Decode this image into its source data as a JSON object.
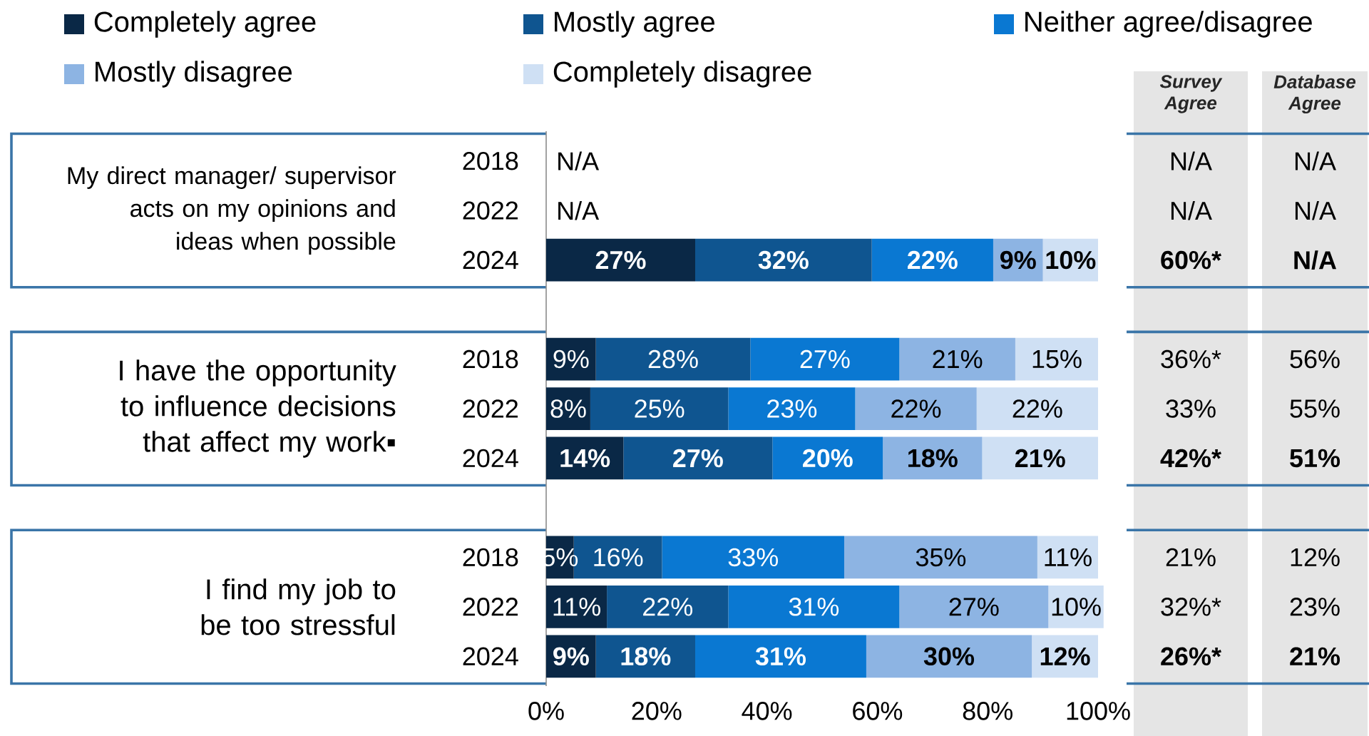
{
  "chart_data": [
    {
      "type": "bar",
      "orientation": "horizontal",
      "stacked": true,
      "legend": "top",
      "categories": [
        "2018",
        "2022",
        "2024",
        "2018",
        "2022",
        "2024",
        "2018",
        "2022",
        "2024"
      ],
      "series": [
        {
          "name": "Completely agree",
          "color": "#0a2846",
          "values": [
            null,
            null,
            27,
            9,
            8,
            14,
            5,
            11,
            9
          ],
          "value_labels": [
            "N/A",
            "N/A",
            "27%",
            "9%",
            "8%",
            "14%",
            "5%",
            "11%",
            "9%"
          ]
        },
        {
          "name": "Mostly agree",
          "color": "#0f5590",
          "values": [
            null,
            null,
            32,
            28,
            25,
            27,
            16,
            22,
            18
          ],
          "value_labels": [
            null,
            null,
            "32%",
            "28%",
            "25%",
            "27%",
            "16%",
            "22%",
            "18%"
          ]
        },
        {
          "name": "Neither agree/disagree",
          "color": "#0a78d2",
          "values": [
            null,
            null,
            22,
            27,
            23,
            20,
            33,
            31,
            31
          ],
          "value_labels": [
            null,
            null,
            "22%",
            "27%",
            "23%",
            "20%",
            "33%",
            "31%",
            "31%"
          ]
        },
        {
          "name": "Mostly disagree",
          "color": "#8db4e3",
          "values": [
            null,
            null,
            9,
            21,
            22,
            18,
            35,
            27,
            30
          ],
          "value_labels": [
            null,
            null,
            "9%",
            "21%",
            "22%",
            "18%",
            "35%",
            "27%",
            "30%"
          ]
        },
        {
          "name": "Completely disagree",
          "color": "#cfe0f4",
          "values": [
            null,
            null,
            10,
            15,
            22,
            21,
            11,
            10,
            12
          ],
          "value_labels": [
            null,
            null,
            "10%",
            "15%",
            "22%",
            "21%",
            "11%",
            "10%",
            "12%"
          ]
        }
      ],
      "xlim": [
        0,
        101
      ],
      "xticks": [
        {
          "value": 0,
          "label": "0%"
        },
        {
          "value": 20,
          "label": "20%"
        },
        {
          "value": 40,
          "label": "40%"
        },
        {
          "value": 60,
          "label": "60%"
        },
        {
          "value": 80,
          "label": "80%"
        },
        {
          "value": 100,
          "label": "100%"
        }
      ],
      "annotations": [
        "My direct manager/ supervisor acts on my opinions and ideas when possible",
        "I have the opportunity to influence decisions that affect my work▪",
        "I find my job to be too stressful"
      ]
    },
    {
      "type": "other",
      "title": "Survey Agree",
      "annotations": [
        "N/A",
        "N/A",
        "60%*",
        "36%*",
        "33%",
        "42%*",
        "21%",
        "32%*",
        "26%*"
      ]
    },
    {
      "type": "other",
      "title": "Database Agree",
      "annotations": [
        "N/A",
        "N/A",
        "N/A",
        "56%",
        "55%",
        "51%",
        "12%",
        "23%",
        "21%"
      ]
    }
  ]
}
